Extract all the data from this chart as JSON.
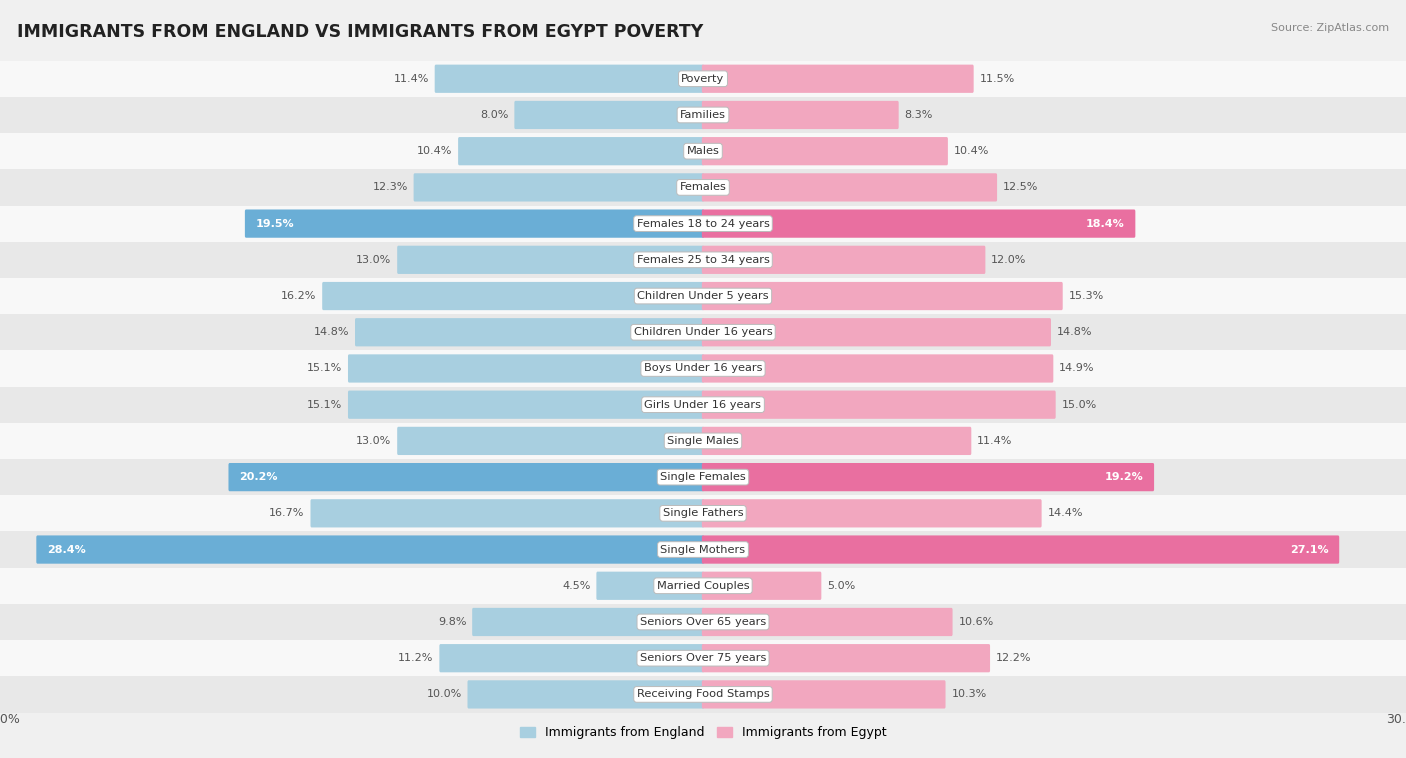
{
  "title": "IMMIGRANTS FROM ENGLAND VS IMMIGRANTS FROM EGYPT POVERTY",
  "source": "Source: ZipAtlas.com",
  "categories": [
    "Poverty",
    "Families",
    "Males",
    "Females",
    "Females 18 to 24 years",
    "Females 25 to 34 years",
    "Children Under 5 years",
    "Children Under 16 years",
    "Boys Under 16 years",
    "Girls Under 16 years",
    "Single Males",
    "Single Females",
    "Single Fathers",
    "Single Mothers",
    "Married Couples",
    "Seniors Over 65 years",
    "Seniors Over 75 years",
    "Receiving Food Stamps"
  ],
  "england_values": [
    11.4,
    8.0,
    10.4,
    12.3,
    19.5,
    13.0,
    16.2,
    14.8,
    15.1,
    15.1,
    13.0,
    20.2,
    16.7,
    28.4,
    4.5,
    9.8,
    11.2,
    10.0
  ],
  "egypt_values": [
    11.5,
    8.3,
    10.4,
    12.5,
    18.4,
    12.0,
    15.3,
    14.8,
    14.9,
    15.0,
    11.4,
    19.2,
    14.4,
    27.1,
    5.0,
    10.6,
    12.2,
    10.3
  ],
  "england_color": "#a8cfe0",
  "egypt_color": "#f2a7bf",
  "england_color_highlight": "#6aaed6",
  "egypt_color_highlight": "#e96fa0",
  "highlight_threshold": 18.0,
  "max_value": 30.0,
  "legend_england": "Immigrants from England",
  "legend_egypt": "Immigrants from Egypt",
  "bg_color": "#f0f0f0",
  "row_bg_light": "#f8f8f8",
  "row_bg_dark": "#e8e8e8",
  "title_color": "#222222",
  "source_color": "#888888",
  "label_color_dark": "#555555",
  "label_color_light": "#ffffff"
}
